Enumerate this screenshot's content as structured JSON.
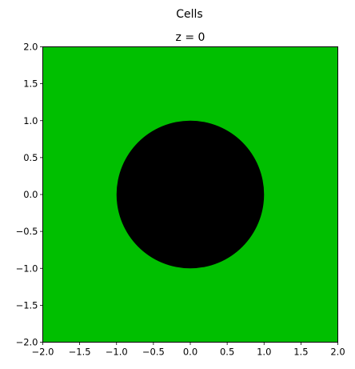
{
  "figure": {
    "suptitle": "Cells"
  },
  "chart_data": {
    "type": "heatmap",
    "title": "z = 0",
    "xlabel": "",
    "ylabel": "",
    "xlim": [
      -2.0,
      2.0
    ],
    "ylim": [
      -2.0,
      2.0
    ],
    "x_ticks": [
      -2.0,
      -1.5,
      -1.0,
      -0.5,
      0.0,
      0.5,
      1.0,
      1.5,
      2.0
    ],
    "x_tick_labels": [
      "−2.0",
      "−1.5",
      "−1.0",
      "−0.5",
      "0.0",
      "0.5",
      "1.0",
      "1.5",
      "2.0"
    ],
    "y_ticks": [
      2.0,
      1.5,
      1.0,
      0.5,
      0.0,
      -0.5,
      -1.0,
      -1.5,
      -2.0
    ],
    "y_tick_labels": [
      "2.0",
      "1.5",
      "1.0",
      "0.5",
      "0.0",
      "−0.5",
      "−1.0",
      "−1.5",
      "−2.0"
    ],
    "grid": false,
    "regions": [
      {
        "shape": "square",
        "x_range": [
          -2.0,
          2.0
        ],
        "y_range": [
          -2.0,
          2.0
        ],
        "color": "#00bf00"
      },
      {
        "shape": "circle",
        "center": [
          0.0,
          0.0
        ],
        "radius": 1.0,
        "color": "#000000"
      }
    ]
  }
}
